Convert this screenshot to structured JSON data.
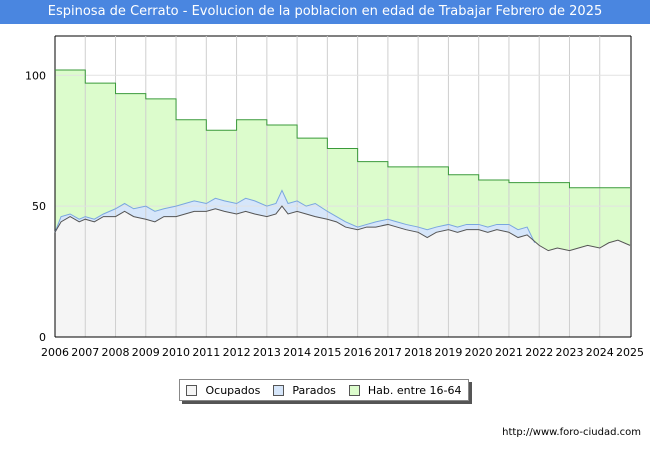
{
  "title": "Espinosa de Cerrato - Evolucion de la poblacion en edad de Trabajar Febrero de 2025",
  "source": "http://www.foro-ciudad.com",
  "colors": {
    "header": "#4a86e0",
    "ocupados_fill": "#f5f5f5",
    "ocupados_line": "#555555",
    "parados_fill": "#d6e6fa",
    "parados_line": "#7aa6df",
    "hab_fill": "#dcfccc",
    "hab_line": "#3a9a3a"
  },
  "chart_data": {
    "type": "area",
    "x_ticks": [
      "2006",
      "2007",
      "2008",
      "2009",
      "2010",
      "2011",
      "2012",
      "2013",
      "2014",
      "2015",
      "2016",
      "2017",
      "2018",
      "2019",
      "2020",
      "2021",
      "2022",
      "2023",
      "2024",
      "2025"
    ],
    "y_ticks": [
      "0",
      "50",
      "100"
    ],
    "ylim": [
      0,
      115
    ],
    "xlim": [
      2006,
      2025
    ],
    "grid": true,
    "legend_position": "bottom",
    "series": [
      {
        "name": "Hab. entre 16-64",
        "points": [
          [
            2006,
            102
          ],
          [
            2007,
            97
          ],
          [
            2008,
            93
          ],
          [
            2009,
            91
          ],
          [
            2010,
            83
          ],
          [
            2011,
            79
          ],
          [
            2012,
            83
          ],
          [
            2013,
            81
          ],
          [
            2014,
            76
          ],
          [
            2015,
            72
          ],
          [
            2016,
            67
          ],
          [
            2017,
            65
          ],
          [
            2018,
            65
          ],
          [
            2019,
            62
          ],
          [
            2020,
            60
          ],
          [
            2021,
            59
          ],
          [
            2022,
            59
          ],
          [
            2023,
            57
          ],
          [
            2024,
            57
          ]
        ]
      },
      {
        "name": "Parados",
        "points": [
          [
            2006.0,
            40
          ],
          [
            2006.2,
            46
          ],
          [
            2006.5,
            47
          ],
          [
            2006.8,
            45
          ],
          [
            2007.0,
            46
          ],
          [
            2007.3,
            45
          ],
          [
            2007.6,
            47
          ],
          [
            2008.0,
            49
          ],
          [
            2008.3,
            51
          ],
          [
            2008.6,
            49
          ],
          [
            2009.0,
            50
          ],
          [
            2009.3,
            48
          ],
          [
            2009.6,
            49
          ],
          [
            2010.0,
            50
          ],
          [
            2010.3,
            51
          ],
          [
            2010.6,
            52
          ],
          [
            2011.0,
            51
          ],
          [
            2011.3,
            53
          ],
          [
            2011.6,
            52
          ],
          [
            2012.0,
            51
          ],
          [
            2012.3,
            53
          ],
          [
            2012.6,
            52
          ],
          [
            2013.0,
            50
          ],
          [
            2013.3,
            51
          ],
          [
            2013.5,
            56
          ],
          [
            2013.7,
            51
          ],
          [
            2014.0,
            52
          ],
          [
            2014.3,
            50
          ],
          [
            2014.6,
            51
          ],
          [
            2015.0,
            48
          ],
          [
            2015.3,
            46
          ],
          [
            2015.6,
            44
          ],
          [
            2016.0,
            42
          ],
          [
            2016.3,
            43
          ],
          [
            2016.6,
            44
          ],
          [
            2017.0,
            45
          ],
          [
            2017.3,
            44
          ],
          [
            2017.6,
            43
          ],
          [
            2018.0,
            42
          ],
          [
            2018.3,
            41
          ],
          [
            2018.6,
            42
          ],
          [
            2019.0,
            43
          ],
          [
            2019.3,
            42
          ],
          [
            2019.6,
            43
          ],
          [
            2020.0,
            43
          ],
          [
            2020.3,
            42
          ],
          [
            2020.6,
            43
          ],
          [
            2021.0,
            43
          ],
          [
            2021.3,
            41
          ],
          [
            2021.6,
            42
          ],
          [
            2021.85,
            36
          ]
        ]
      },
      {
        "name": "Ocupados",
        "points": [
          [
            2006.0,
            40
          ],
          [
            2006.2,
            44
          ],
          [
            2006.5,
            46
          ],
          [
            2006.8,
            44
          ],
          [
            2007.0,
            45
          ],
          [
            2007.3,
            44
          ],
          [
            2007.6,
            46
          ],
          [
            2008.0,
            46
          ],
          [
            2008.3,
            48
          ],
          [
            2008.6,
            46
          ],
          [
            2009.0,
            45
          ],
          [
            2009.3,
            44
          ],
          [
            2009.6,
            46
          ],
          [
            2010.0,
            46
          ],
          [
            2010.3,
            47
          ],
          [
            2010.6,
            48
          ],
          [
            2011.0,
            48
          ],
          [
            2011.3,
            49
          ],
          [
            2011.6,
            48
          ],
          [
            2012.0,
            47
          ],
          [
            2012.3,
            48
          ],
          [
            2012.6,
            47
          ],
          [
            2013.0,
            46
          ],
          [
            2013.3,
            47
          ],
          [
            2013.5,
            50
          ],
          [
            2013.7,
            47
          ],
          [
            2014.0,
            48
          ],
          [
            2014.3,
            47
          ],
          [
            2014.6,
            46
          ],
          [
            2015.0,
            45
          ],
          [
            2015.3,
            44
          ],
          [
            2015.6,
            42
          ],
          [
            2016.0,
            41
          ],
          [
            2016.3,
            42
          ],
          [
            2016.6,
            42
          ],
          [
            2017.0,
            43
          ],
          [
            2017.3,
            42
          ],
          [
            2017.6,
            41
          ],
          [
            2018.0,
            40
          ],
          [
            2018.3,
            38
          ],
          [
            2018.6,
            40
          ],
          [
            2019.0,
            41
          ],
          [
            2019.3,
            40
          ],
          [
            2019.6,
            41
          ],
          [
            2020.0,
            41
          ],
          [
            2020.3,
            40
          ],
          [
            2020.6,
            41
          ],
          [
            2021.0,
            40
          ],
          [
            2021.3,
            38
          ],
          [
            2021.6,
            39
          ],
          [
            2022.0,
            35
          ],
          [
            2022.3,
            33
          ],
          [
            2022.6,
            34
          ],
          [
            2023.0,
            33
          ],
          [
            2023.3,
            34
          ],
          [
            2023.6,
            35
          ],
          [
            2024.0,
            34
          ],
          [
            2024.3,
            36
          ],
          [
            2024.6,
            37
          ],
          [
            2025.0,
            35
          ]
        ]
      }
    ]
  }
}
